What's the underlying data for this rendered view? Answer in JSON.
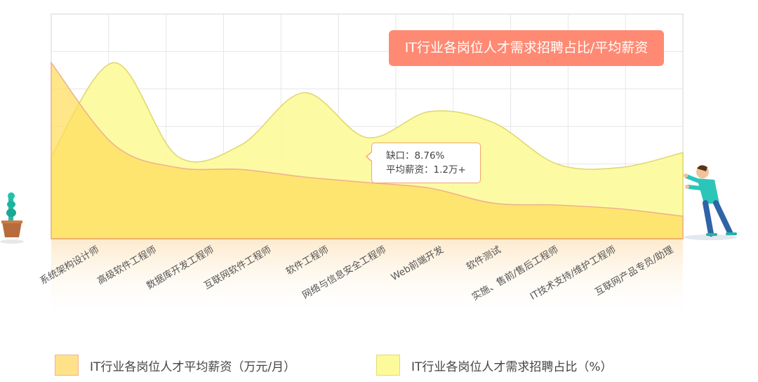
{
  "title": "IT行业各岗位人才需求招聘占比/平均薪资",
  "tooltip": {
    "gap_label": "缺口：8.76%",
    "salary_label": "平均薪资：1.2万+"
  },
  "legend": [
    {
      "label": "IT行业各岗位人才平均薪资（万元/月）",
      "color": "#fee28a"
    },
    {
      "label": "IT行业各岗位人才需求招聘占比（%）",
      "color": "#fdfa9b"
    }
  ],
  "colors": {
    "salary_fill": "#fddc5c",
    "salary_stroke": "#f0b28e",
    "demand_fill": "#fdfa9c",
    "demand_stroke": "#e0d870",
    "title_bg": "#ff8a73",
    "axis": "#f0b070"
  },
  "chart_data": {
    "type": "area",
    "categories": [
      "系统架构设计师",
      "高级软件工程师",
      "数据库开发工程师",
      "互联网软件工程师",
      "软件工程师",
      "网络与信息安全工程师",
      "Web前端开发",
      "软件测试",
      "实施、售前/售后工程师",
      "IT技术支持/维护工程师",
      "互联网产品专员/助理"
    ],
    "series": [
      {
        "name": "IT行业各岗位人才平均薪资（万元/月）",
        "values": [
          4.7,
          2.5,
          1.9,
          1.85,
          1.65,
          1.5,
          1.35,
          0.95,
          0.9,
          0.8,
          0.6
        ]
      },
      {
        "name": "IT行业各岗位人才需求招聘占比（%）",
        "values": [
          22,
          47,
          22,
          25,
          39,
          27,
          34,
          31,
          20,
          19,
          23
        ]
      }
    ],
    "ylim": [
      0,
      6
    ],
    "ylim_right": [
      0,
      60
    ],
    "grid": true,
    "legend_position": "bottom",
    "highlight": {
      "category": "网络与信息安全工程师",
      "gap": "8.76%",
      "salary": "1.2万+"
    }
  }
}
